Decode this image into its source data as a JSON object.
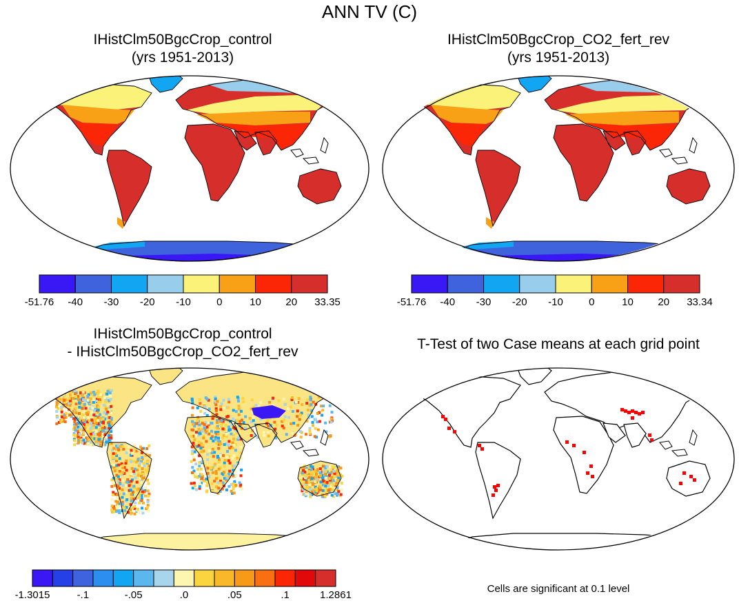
{
  "title": "ANN TV (C)",
  "panels": [
    {
      "id": "control",
      "title_line1": "IHistClm50BgcCrop_control",
      "title_line2": "(yrs 1951-2013)",
      "colorbar": {
        "colors": [
          "#3a18f5",
          "#3f63dd",
          "#12a6f2",
          "#99cdec",
          "#fbf27a",
          "#f9a116",
          "#fb2606",
          "#d62f2b"
        ],
        "labels": [
          "-51.76",
          "-40",
          "-30",
          "-20",
          "-10",
          "0",
          "10",
          "20",
          "33.35"
        ]
      }
    },
    {
      "id": "co2_fert_rev",
      "title_line1": "IHistClm50BgcCrop_CO2_fert_rev",
      "title_line2": "(yrs 1951-2013)",
      "colorbar": {
        "colors": [
          "#3a18f5",
          "#3f63dd",
          "#12a6f2",
          "#99cdec",
          "#fbf27a",
          "#f9a116",
          "#fb2606",
          "#d62f2b"
        ],
        "labels": [
          "-51.76",
          "-40",
          "-30",
          "-20",
          "-10",
          "0",
          "10",
          "20",
          "33.34"
        ]
      }
    },
    {
      "id": "difference",
      "title_line1": "IHistClm50BgcCrop_control",
      "title_line2": "- IHistClm50BgcCrop_CO2_fert_rev",
      "colorbar": {
        "colors": [
          "#3a18f5",
          "#2440e6",
          "#3f63dd",
          "#2c8ff0",
          "#12a6f2",
          "#5bb7ee",
          "#a8d4ec",
          "#fdf6b0",
          "#fbd53f",
          "#f9b72a",
          "#f79a17",
          "#f97012",
          "#fb2606",
          "#e2090a",
          "#d62f2b"
        ],
        "labels": [
          "-1.3015",
          "-.1",
          "-.05",
          ".0",
          ".05",
          ".1",
          "1.2861"
        ]
      }
    },
    {
      "id": "ttest",
      "title_line1": "T-Test of two Case means at each grid point",
      "note": "Cells are significant at 0.1 level",
      "significant_color": "#ff0000"
    }
  ]
}
